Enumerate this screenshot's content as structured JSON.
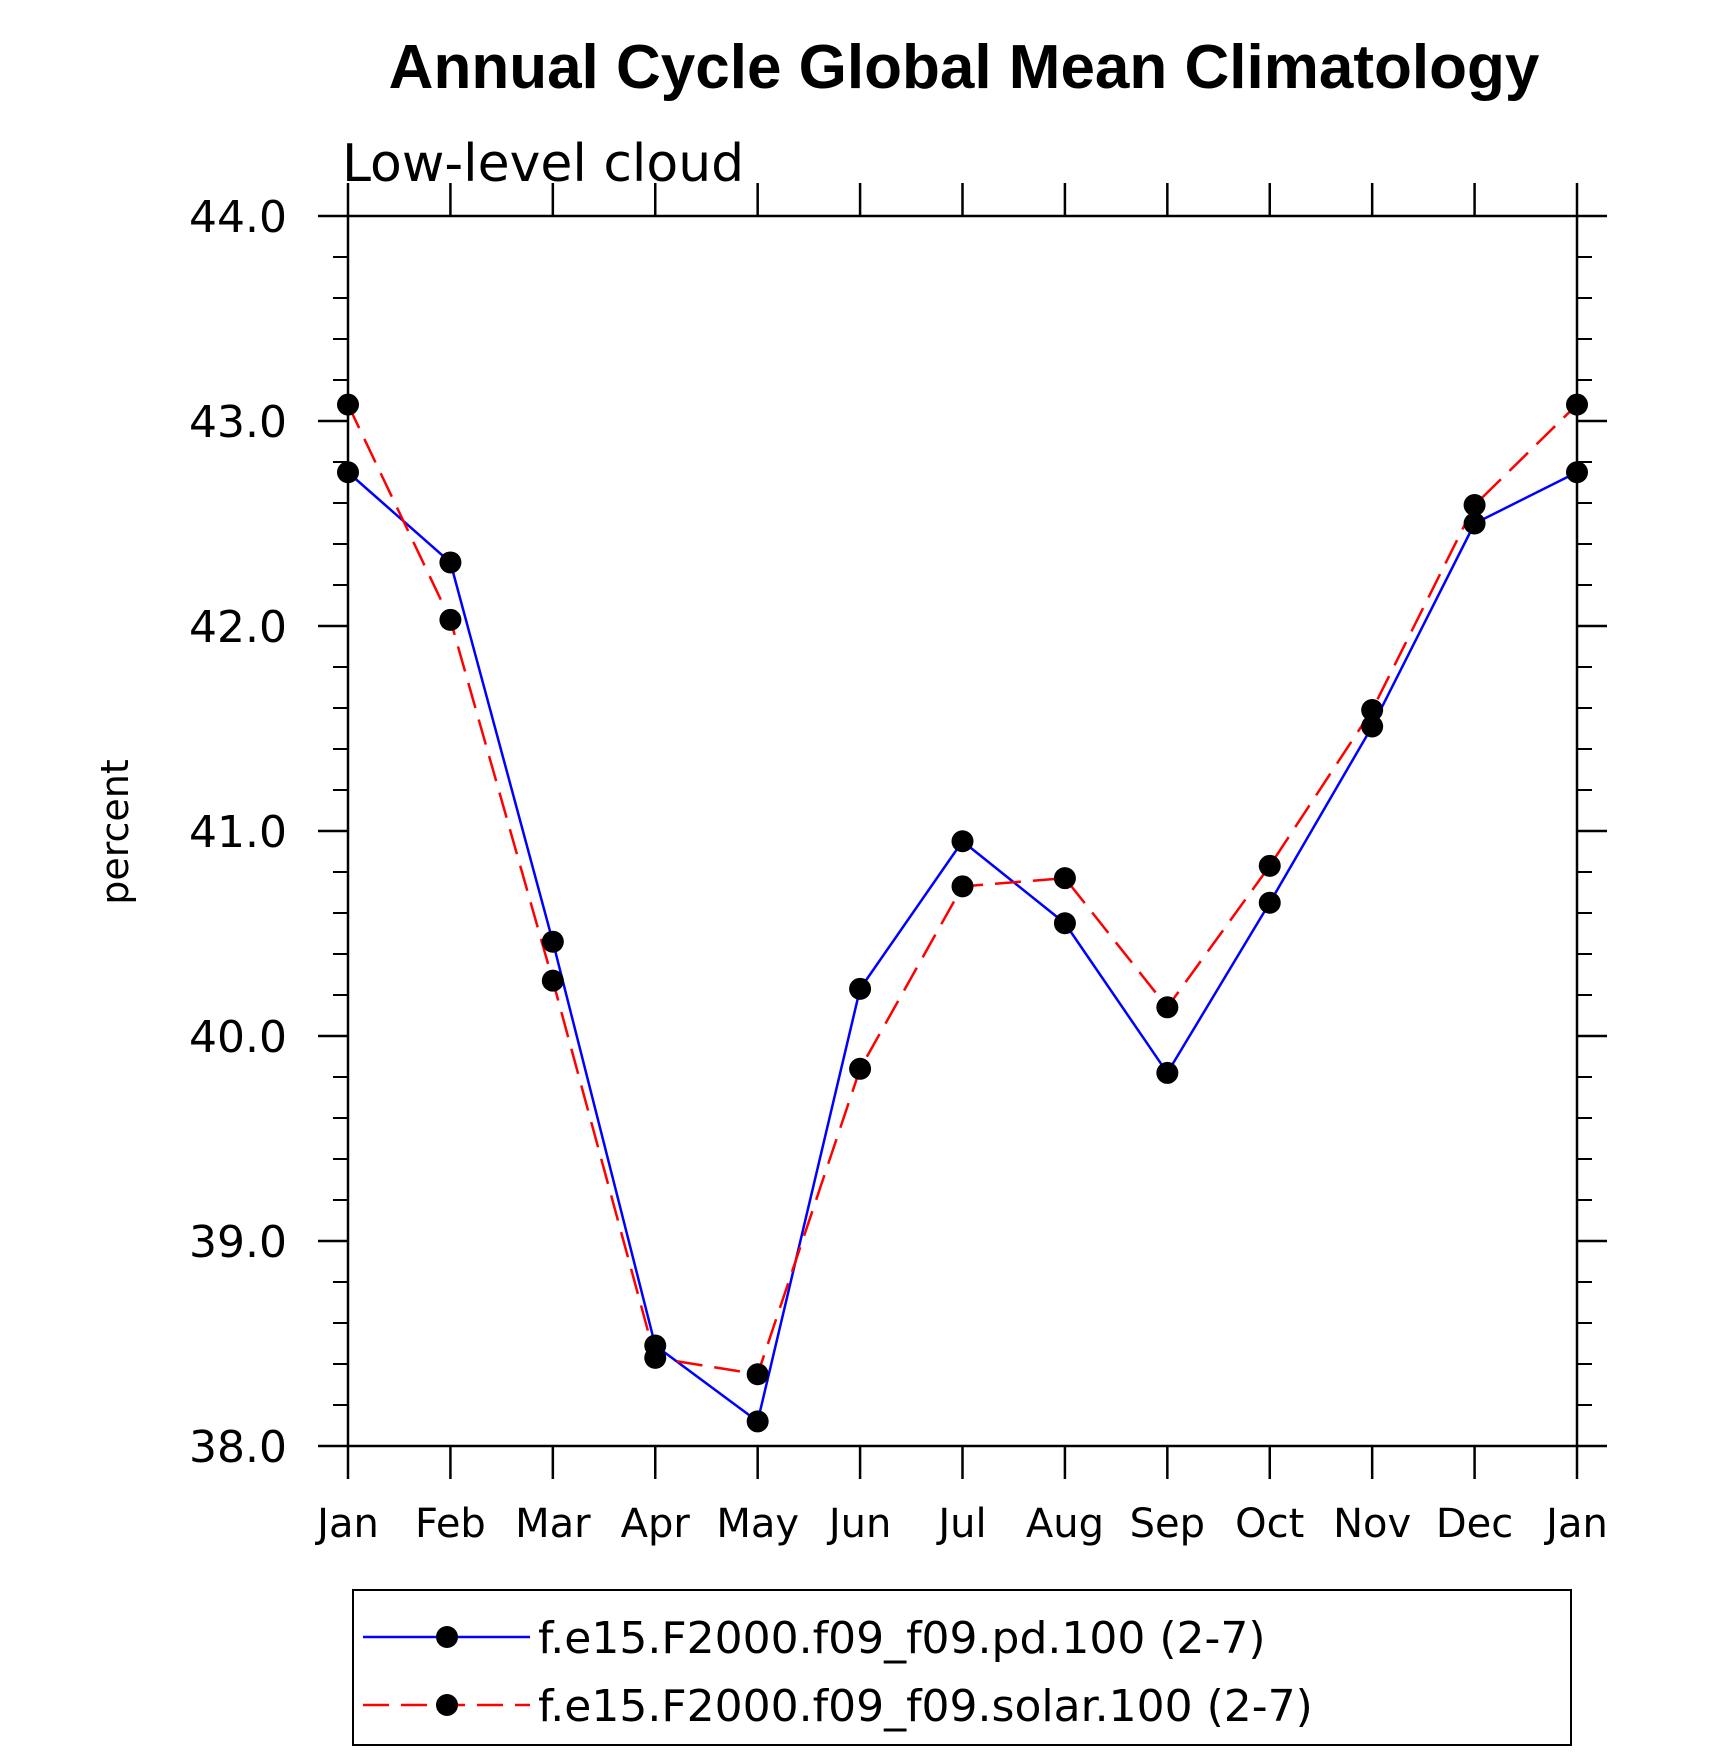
{
  "chart_data": {
    "type": "line",
    "title": "Annual Cycle Global Mean Climatology",
    "subtitle": "Low-level cloud",
    "xlabel": "",
    "ylabel": "percent",
    "categories": [
      "Jan",
      "Feb",
      "Mar",
      "Apr",
      "May",
      "Jun",
      "Jul",
      "Aug",
      "Sep",
      "Oct",
      "Nov",
      "Dec",
      "Jan"
    ],
    "ylim": [
      38.0,
      44.0
    ],
    "yticks": [
      "38.0",
      "39.0",
      "40.0",
      "41.0",
      "42.0",
      "43.0",
      "44.0"
    ],
    "grid": false,
    "legend_position": "bottom",
    "series": [
      {
        "name": "f.e15.F2000.f09_f09.pd.100 (2-7)",
        "color": "#0000ff",
        "dash": "solid",
        "values": [
          42.75,
          42.31,
          40.46,
          38.49,
          38.12,
          40.23,
          40.95,
          40.55,
          39.82,
          40.65,
          41.51,
          42.5,
          42.75
        ]
      },
      {
        "name": "f.e15.F2000.f09_f09.solar.100 (2-7)",
        "color": "#ff0000",
        "dash": "dashed",
        "values": [
          43.08,
          42.03,
          40.27,
          38.43,
          38.35,
          39.84,
          40.73,
          40.77,
          40.14,
          40.83,
          41.59,
          42.59,
          43.08
        ]
      }
    ]
  }
}
